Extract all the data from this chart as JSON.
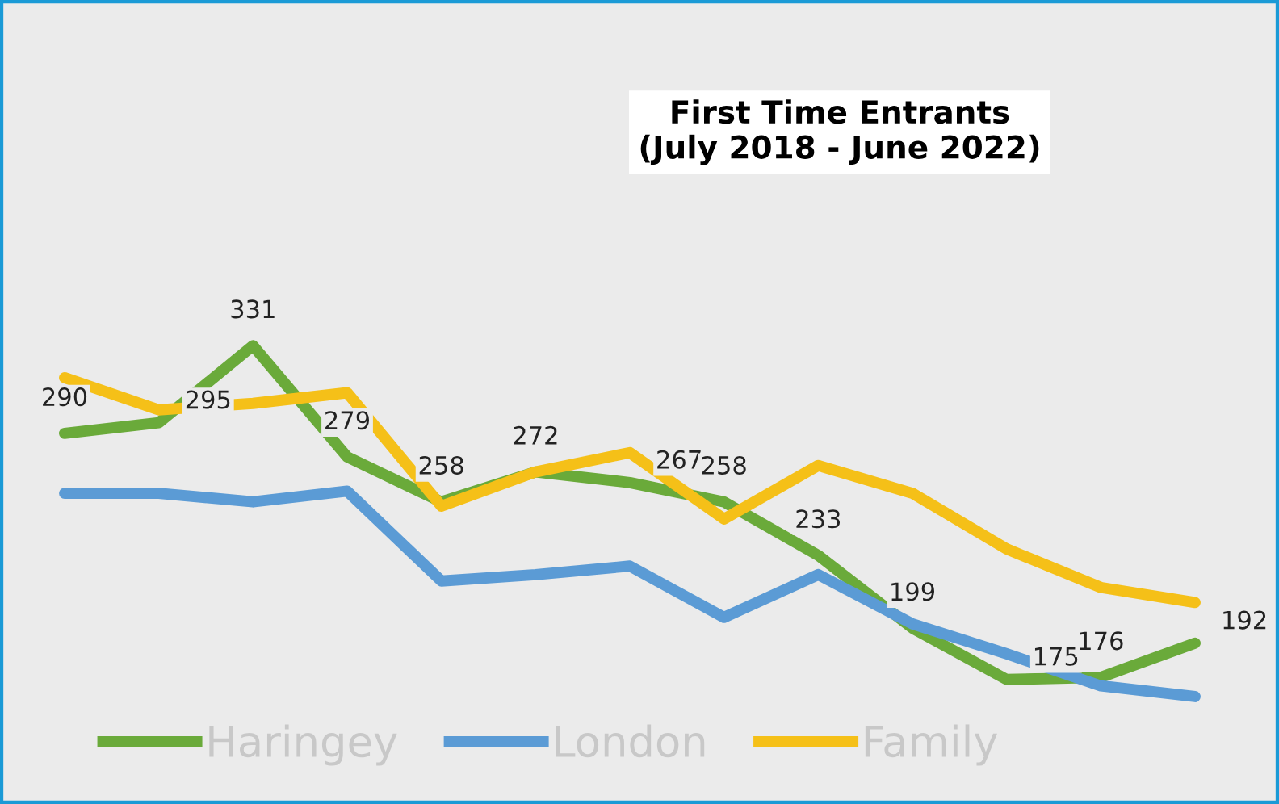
{
  "chart_data": {
    "type": "line",
    "title": "First Time Entrants\n(July 2018 - June 2022)",
    "categories": [
      null,
      null,
      null,
      null,
      null,
      null,
      null,
      null,
      null,
      null,
      null,
      null,
      null
    ],
    "series": [
      {
        "name": "Haringey",
        "color": "#6aaa3a",
        "values": [
          290,
          295,
          331,
          279,
          258,
          272,
          267,
          258,
          233,
          199,
          175,
          176,
          192
        ],
        "value_labels": [
          "290",
          "295",
          "331",
          "279",
          "258",
          "272",
          "267",
          "258",
          "233",
          "199",
          "175",
          "176",
          "192"
        ]
      },
      {
        "name": "London",
        "color": "#5b9bd5",
        "values": [
          262,
          262,
          258,
          263,
          221,
          224,
          228,
          204,
          224,
          201,
          187,
          172,
          167
        ]
      },
      {
        "name": "Family",
        "color": "#f5c018",
        "values": [
          316,
          301,
          304,
          309,
          256,
          272,
          281,
          250,
          275,
          262,
          236,
          218,
          211
        ]
      }
    ],
    "legend": "bottom",
    "grid": false,
    "tick_labels": false,
    "marker": "none",
    "line_style": "solid"
  }
}
